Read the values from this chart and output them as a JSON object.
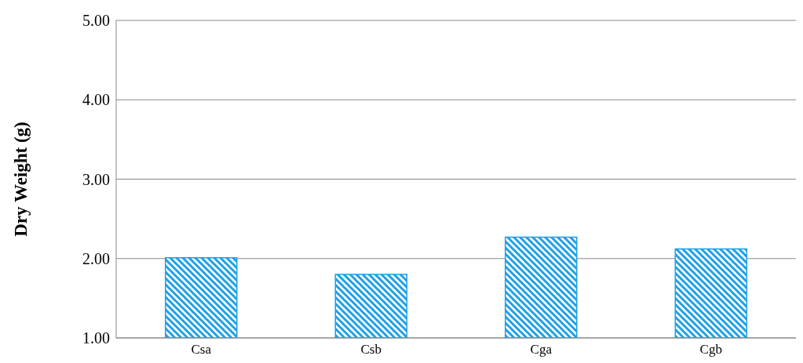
{
  "chart_data": {
    "type": "bar",
    "ylabel": "Dry Weight (g)",
    "categories": [
      "Csa",
      "Csb",
      "Cga",
      "Cgb"
    ],
    "values": [
      2.01,
      1.8,
      2.27,
      2.12
    ],
    "color": "#1ea0e6",
    "ylim": [
      1,
      5
    ],
    "yticks": [
      {
        "value": 1,
        "label": "1.00"
      },
      {
        "value": 2,
        "label": "2.00"
      },
      {
        "value": 3,
        "label": "3.00"
      },
      {
        "value": 4,
        "label": "4.00"
      },
      {
        "value": 5,
        "label": "5.00"
      }
    ],
    "grid": "y",
    "legend": false
  }
}
